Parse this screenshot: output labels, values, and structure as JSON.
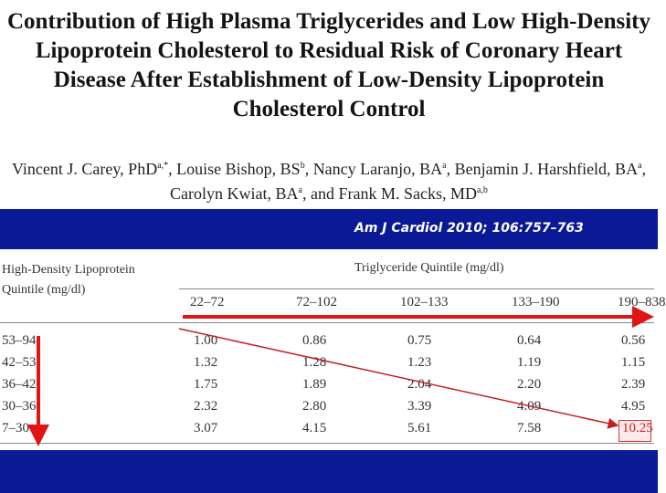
{
  "paper": {
    "title_lines": [
      "Contribution of High Plasma Triglycerides and Low High-Density",
      "Lipoprotein Cholesterol to Residual Risk of Coronary Heart",
      "Disease After Establishment of Low-Density Lipoprotein",
      "Cholesterol Control"
    ],
    "authors_line1": [
      {
        "name": "Vincent J. Carey, PhD",
        "sup": "a,*"
      },
      {
        "name": ", Louise Bishop, BS",
        "sup": "b"
      },
      {
        "name": ", Nancy Laranjo, BA",
        "sup": "a"
      },
      {
        "name": ", Benjamin J. Harshfield, BA",
        "sup": "a"
      },
      {
        "name": ",",
        "sup": ""
      }
    ],
    "authors_line2": [
      {
        "name": "Carolyn Kwiat, BA",
        "sup": "a"
      },
      {
        "name": ", and Frank M. Sacks, MD",
        "sup": "a,b"
      }
    ],
    "citation": "Am J Cardiol 2010; 106:757–763"
  },
  "table": {
    "row_header_line1": "High-Density Lipoprotein",
    "row_header_line2": "Quintile (mg/dl)",
    "col_header": "Triglyceride Quintile (mg/dl)",
    "columns": [
      "22–72",
      "72–102",
      "102–133",
      "133–190",
      "190–838"
    ],
    "rows": [
      {
        "label": "53–94",
        "values": [
          "1.00",
          "0.86",
          "0.75",
          "0.64",
          "0.56"
        ]
      },
      {
        "label": "42–53",
        "values": [
          "1.32",
          "1.28",
          "1.23",
          "1.19",
          "1.15"
        ]
      },
      {
        "label": "36–42",
        "values": [
          "1.75",
          "1.89",
          "2.04",
          "2.20",
          "2.39"
        ]
      },
      {
        "label": "30–36",
        "values": [
          "2.32",
          "2.80",
          "3.39",
          "4.09",
          "4.95"
        ]
      },
      {
        "label": "7–30",
        "values": [
          "3.07",
          "4.15",
          "5.61",
          "7.58",
          "10.25"
        ]
      }
    ]
  },
  "colors": {
    "band": "#0a1a96",
    "arrow": "#e01515",
    "diagonal": "#c42020"
  }
}
